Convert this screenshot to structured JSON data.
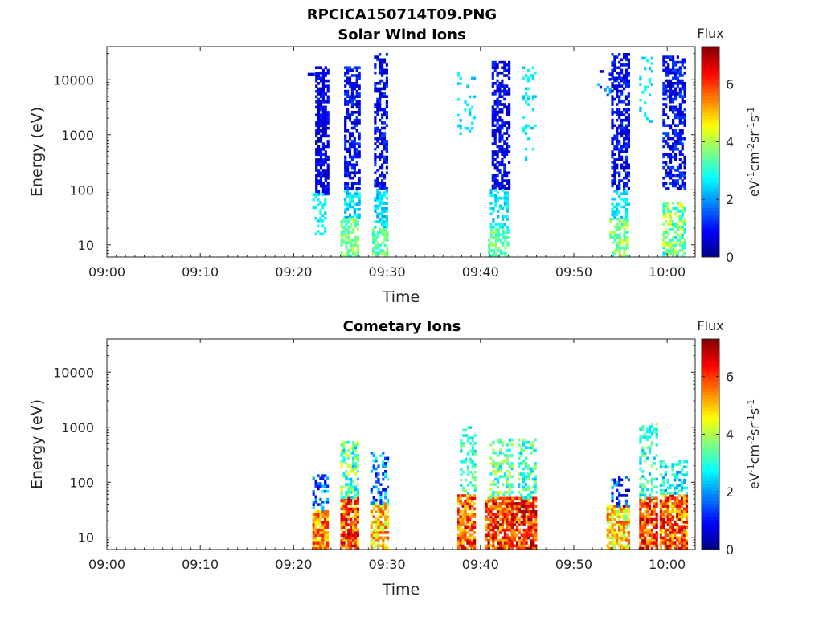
{
  "figure_title": "RPCICA150714T09.PNG",
  "chart_data": [
    {
      "type": "heatmap",
      "title": "Solar Wind Ions",
      "xlabel": "Time",
      "ylabel": "Energy (eV)",
      "x_ticks": [
        "09:00",
        "09:10",
        "09:20",
        "09:30",
        "09:40",
        "09:50",
        "10:00"
      ],
      "x_range_minutes": [
        0,
        63
      ],
      "y_ticks": [
        "10",
        "100",
        "1000",
        "10000"
      ],
      "y_scale": "log",
      "y_range": [
        6,
        40000
      ],
      "colorbar": {
        "title": "Flux",
        "label": "eV-1cm-2sr-1s-1",
        "ticks": [
          "0",
          "2",
          "4",
          "6"
        ],
        "range": [
          0,
          7.3
        ],
        "colormap": "jet"
      },
      "bursts": [
        {
          "t_start": 21.0,
          "t_end": 22.3,
          "e_min": 12000,
          "e_max": 13000,
          "v_min": 0.5,
          "v_max": 1.0,
          "density": 0.4
        },
        {
          "t_start": 22.3,
          "t_end": 23.6,
          "e_min": 80,
          "e_max": 16000,
          "v_min": 0.3,
          "v_max": 1.2,
          "density": 0.7
        },
        {
          "t_start": 22.0,
          "t_end": 23.5,
          "e_min": 15,
          "e_max": 80,
          "v_min": 2.4,
          "v_max": 3.0,
          "density": 0.3
        },
        {
          "t_start": 25.4,
          "t_end": 27.0,
          "e_min": 100,
          "e_max": 16000,
          "v_min": 0.3,
          "v_max": 1.5,
          "density": 0.6
        },
        {
          "t_start": 25.4,
          "t_end": 27.0,
          "e_min": 30,
          "e_max": 100,
          "v_min": 2.0,
          "v_max": 3.2,
          "density": 0.6
        },
        {
          "t_start": 25.0,
          "t_end": 27.0,
          "e_min": 6,
          "e_max": 30,
          "v_min": 3.0,
          "v_max": 4.2,
          "density": 0.7
        },
        {
          "t_start": 28.6,
          "t_end": 30.0,
          "e_min": 100,
          "e_max": 30000,
          "v_min": 0.3,
          "v_max": 1.5,
          "density": 0.55
        },
        {
          "t_start": 28.6,
          "t_end": 30.0,
          "e_min": 20,
          "e_max": 100,
          "v_min": 2.0,
          "v_max": 3.0,
          "density": 0.6
        },
        {
          "t_start": 28.4,
          "t_end": 30.0,
          "e_min": 6,
          "e_max": 20,
          "v_min": 2.8,
          "v_max": 4.0,
          "density": 0.6
        },
        {
          "t_start": 37.5,
          "t_end": 39.5,
          "e_min": 1000,
          "e_max": 14000,
          "v_min": 2.2,
          "v_max": 3.0,
          "density": 0.15
        },
        {
          "t_start": 41.2,
          "t_end": 43.0,
          "e_min": 100,
          "e_max": 20000,
          "v_min": 0.3,
          "v_max": 1.3,
          "density": 0.6
        },
        {
          "t_start": 41.0,
          "t_end": 43.0,
          "e_min": 20,
          "e_max": 100,
          "v_min": 2.2,
          "v_max": 3.0,
          "density": 0.5
        },
        {
          "t_start": 40.8,
          "t_end": 43.0,
          "e_min": 6,
          "e_max": 20,
          "v_min": 2.8,
          "v_max": 4.0,
          "density": 0.7
        },
        {
          "t_start": 44.5,
          "t_end": 46.0,
          "e_min": 300,
          "e_max": 20000,
          "v_min": 2.2,
          "v_max": 3.0,
          "density": 0.15
        },
        {
          "t_start": 52.5,
          "t_end": 54.0,
          "e_min": 5000,
          "e_max": 15000,
          "v_min": 0.5,
          "v_max": 2.6,
          "density": 0.2
        },
        {
          "t_start": 54.0,
          "t_end": 55.8,
          "e_min": 100,
          "e_max": 30000,
          "v_min": 0.3,
          "v_max": 1.5,
          "density": 0.6
        },
        {
          "t_start": 54.0,
          "t_end": 55.8,
          "e_min": 30,
          "e_max": 100,
          "v_min": 2.2,
          "v_max": 3.0,
          "density": 0.5
        },
        {
          "t_start": 53.8,
          "t_end": 55.8,
          "e_min": 6,
          "e_max": 30,
          "v_min": 2.8,
          "v_max": 4.5,
          "density": 0.6
        },
        {
          "t_start": 57.0,
          "t_end": 58.5,
          "e_min": 1500,
          "e_max": 25000,
          "v_min": 2.2,
          "v_max": 3.0,
          "density": 0.2
        },
        {
          "t_start": 59.5,
          "t_end": 62.0,
          "e_min": 100,
          "e_max": 25000,
          "v_min": 0.3,
          "v_max": 1.5,
          "density": 0.6
        },
        {
          "t_start": 59.5,
          "t_end": 62.0,
          "e_min": 6,
          "e_max": 60,
          "v_min": 2.5,
          "v_max": 4.6,
          "density": 0.6
        }
      ]
    },
    {
      "type": "heatmap",
      "title": "Cometary Ions",
      "xlabel": "Time",
      "ylabel": "Energy (eV)",
      "x_ticks": [
        "09:00",
        "09:10",
        "09:20",
        "09:30",
        "09:40",
        "09:50",
        "10:00"
      ],
      "x_range_minutes": [
        0,
        63
      ],
      "y_ticks": [
        "10",
        "100",
        "1000",
        "10000"
      ],
      "y_scale": "log",
      "y_range": [
        6,
        40000
      ],
      "colorbar": {
        "title": "Flux",
        "label": "eV-1cm-2sr-1s-1",
        "ticks": [
          "0",
          "2",
          "4",
          "6"
        ],
        "range": [
          0,
          7.3
        ],
        "colormap": "jet"
      },
      "bursts": [
        {
          "t_start": 22.0,
          "t_end": 23.6,
          "e_min": 6,
          "e_max": 30,
          "v_min": 4.2,
          "v_max": 6.5,
          "density": 0.85
        },
        {
          "t_start": 22.0,
          "t_end": 23.6,
          "e_min": 30,
          "e_max": 130,
          "v_min": 0.4,
          "v_max": 3.0,
          "density": 0.4
        },
        {
          "t_start": 25.0,
          "t_end": 26.8,
          "e_min": 6,
          "e_max": 50,
          "v_min": 4.5,
          "v_max": 7.0,
          "density": 0.85
        },
        {
          "t_start": 25.0,
          "t_end": 26.8,
          "e_min": 50,
          "e_max": 550,
          "v_min": 2.2,
          "v_max": 4.6,
          "density": 0.5
        },
        {
          "t_start": 28.2,
          "t_end": 30.0,
          "e_min": 6,
          "e_max": 40,
          "v_min": 3.8,
          "v_max": 6.0,
          "density": 0.75
        },
        {
          "t_start": 28.2,
          "t_end": 30.0,
          "e_min": 40,
          "e_max": 350,
          "v_min": 0.5,
          "v_max": 3.2,
          "density": 0.35
        },
        {
          "t_start": 37.5,
          "t_end": 39.5,
          "e_min": 6,
          "e_max": 60,
          "v_min": 4.5,
          "v_max": 7.0,
          "density": 0.8
        },
        {
          "t_start": 37.8,
          "t_end": 39.5,
          "e_min": 60,
          "e_max": 950,
          "v_min": 2.2,
          "v_max": 3.8,
          "density": 0.35
        },
        {
          "t_start": 40.5,
          "t_end": 43.3,
          "e_min": 6,
          "e_max": 50,
          "v_min": 4.8,
          "v_max": 7.2,
          "density": 0.85
        },
        {
          "t_start": 41.0,
          "t_end": 43.3,
          "e_min": 50,
          "e_max": 600,
          "v_min": 2.4,
          "v_max": 4.4,
          "density": 0.45
        },
        {
          "t_start": 43.3,
          "t_end": 46.0,
          "e_min": 6,
          "e_max": 50,
          "v_min": 5.0,
          "v_max": 7.3,
          "density": 0.85
        },
        {
          "t_start": 44.0,
          "t_end": 46.0,
          "e_min": 50,
          "e_max": 600,
          "v_min": 2.2,
          "v_max": 4.0,
          "density": 0.35
        },
        {
          "t_start": 53.5,
          "t_end": 55.8,
          "e_min": 6,
          "e_max": 35,
          "v_min": 3.5,
          "v_max": 6.0,
          "density": 0.75
        },
        {
          "t_start": 54.0,
          "t_end": 55.8,
          "e_min": 35,
          "e_max": 130,
          "v_min": 0.3,
          "v_max": 2.5,
          "density": 0.45
        },
        {
          "t_start": 57.0,
          "t_end": 59.0,
          "e_min": 6,
          "e_max": 50,
          "v_min": 4.8,
          "v_max": 7.0,
          "density": 0.8
        },
        {
          "t_start": 57.0,
          "t_end": 59.0,
          "e_min": 50,
          "e_max": 1200,
          "v_min": 2.2,
          "v_max": 4.0,
          "density": 0.4
        },
        {
          "t_start": 59.2,
          "t_end": 62.0,
          "e_min": 6,
          "e_max": 60,
          "v_min": 4.5,
          "v_max": 7.0,
          "density": 0.8
        },
        {
          "t_start": 59.2,
          "t_end": 62.0,
          "e_min": 60,
          "e_max": 250,
          "v_min": 1.8,
          "v_max": 3.5,
          "density": 0.45
        }
      ]
    }
  ]
}
